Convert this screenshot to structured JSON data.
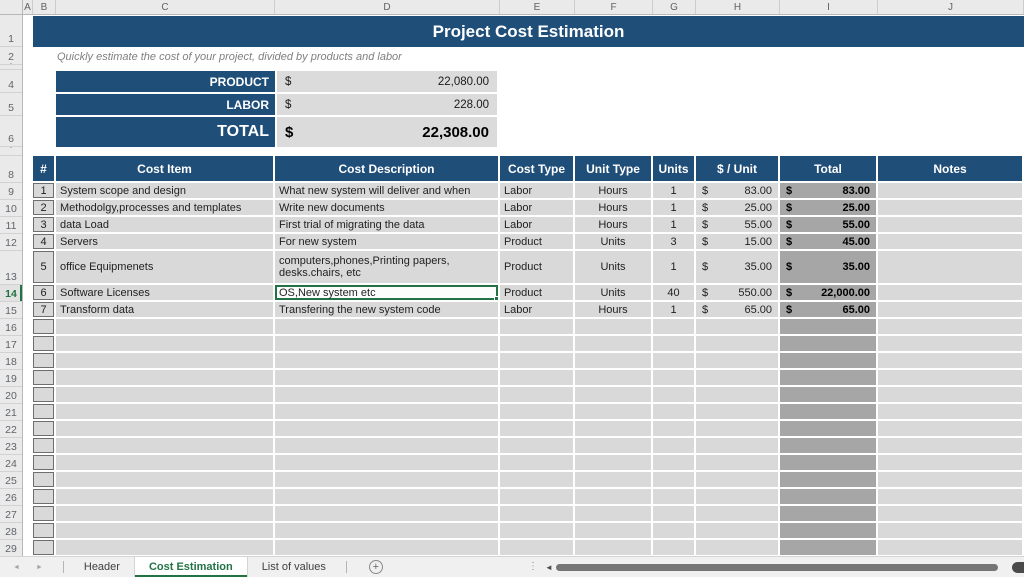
{
  "header": {
    "title": "Project Cost Estimation",
    "subtitle": "Quickly estimate the cost of your project, divided by products and labor"
  },
  "grid": {
    "column_letters": [
      "A",
      "B",
      "C",
      "D",
      "E",
      "F",
      "G",
      "H",
      "I",
      "J"
    ],
    "row_numbers": [
      "1",
      "2",
      "4",
      "5",
      "6",
      "8",
      "9",
      "10",
      "11",
      "12",
      "13",
      "14",
      "15",
      "16",
      "17",
      "18",
      "19",
      "20",
      "21",
      "22",
      "23",
      "24",
      "25",
      "26",
      "27",
      "28",
      "29"
    ],
    "active_row": "14",
    "hidden_rows_after": [
      "2",
      "6"
    ]
  },
  "summary": {
    "rows": [
      {
        "label": "PRODUCT",
        "currency": "$",
        "value": "22,080.00"
      },
      {
        "label": "LABOR",
        "currency": "$",
        "value": "228.00"
      }
    ],
    "total": {
      "label": "TOTAL",
      "currency": "$",
      "value": "22,308.00"
    }
  },
  "table": {
    "headers": [
      "#",
      "Cost Item",
      "Cost Description",
      "Cost Type",
      "Unit Type",
      "Units",
      "$ / Unit",
      "Total",
      "Notes"
    ],
    "currency": "$",
    "rows": [
      {
        "num": "1",
        "item": "System scope and design",
        "description": "What new system will deliver and when",
        "cost_type": "Labor",
        "unit_type": "Hours",
        "units": "1",
        "per_unit": "83.00",
        "total": "83.00",
        "notes": "",
        "tall": false,
        "selected": false
      },
      {
        "num": "2",
        "item": "Methodolgy,processes and templates",
        "description": "Write new documents",
        "cost_type": "Labor",
        "unit_type": "Hours",
        "units": "1",
        "per_unit": "25.00",
        "total": "25.00",
        "notes": "",
        "tall": false,
        "selected": false
      },
      {
        "num": "3",
        "item": "data Load",
        "description": "First trial of migrating the data",
        "cost_type": "Labor",
        "unit_type": "Hours",
        "units": "1",
        "per_unit": "55.00",
        "total": "55.00",
        "notes": "",
        "tall": false,
        "selected": false
      },
      {
        "num": "4",
        "item": "Servers",
        "description": "For new system",
        "cost_type": "Product",
        "unit_type": "Units",
        "units": "3",
        "per_unit": "15.00",
        "total": "45.00",
        "notes": "",
        "tall": false,
        "selected": false
      },
      {
        "num": "5",
        "item": "office Equipmenets",
        "description": "computers,phones,Printing  papers, desks.chairs, etc",
        "cost_type": "Product",
        "unit_type": "Units",
        "units": "1",
        "per_unit": "35.00",
        "total": "35.00",
        "notes": "",
        "tall": true,
        "selected": false
      },
      {
        "num": "6",
        "item": "Software Licenses",
        "description": "OS,New system etc",
        "cost_type": "Product",
        "unit_type": "Units",
        "units": "40",
        "per_unit": "550.00",
        "total": "22,000.00",
        "notes": "",
        "tall": false,
        "selected": true
      },
      {
        "num": "7",
        "item": "Transform data",
        "description": "Transfering the new system code",
        "cost_type": "Labor",
        "unit_type": "Hours",
        "units": "1",
        "per_unit": "65.00",
        "total": "65.00",
        "notes": "",
        "tall": false,
        "selected": false
      }
    ],
    "empty_row_count": 14,
    "selected_cell": {
      "row": "14",
      "column": "Cost Description",
      "value": "OS,New system etc"
    }
  },
  "sheet_tabs": {
    "tabs": [
      {
        "label": "Header",
        "active": false
      },
      {
        "label": "Cost Estimation",
        "active": true
      },
      {
        "label": "List of values",
        "active": false
      }
    ],
    "add_sheet": "+"
  },
  "colors": {
    "banner_blue": "#1f4e79",
    "cell_gray": "#d9d9d9",
    "total_gray": "#a6a6a6",
    "excel_green": "#217346"
  }
}
